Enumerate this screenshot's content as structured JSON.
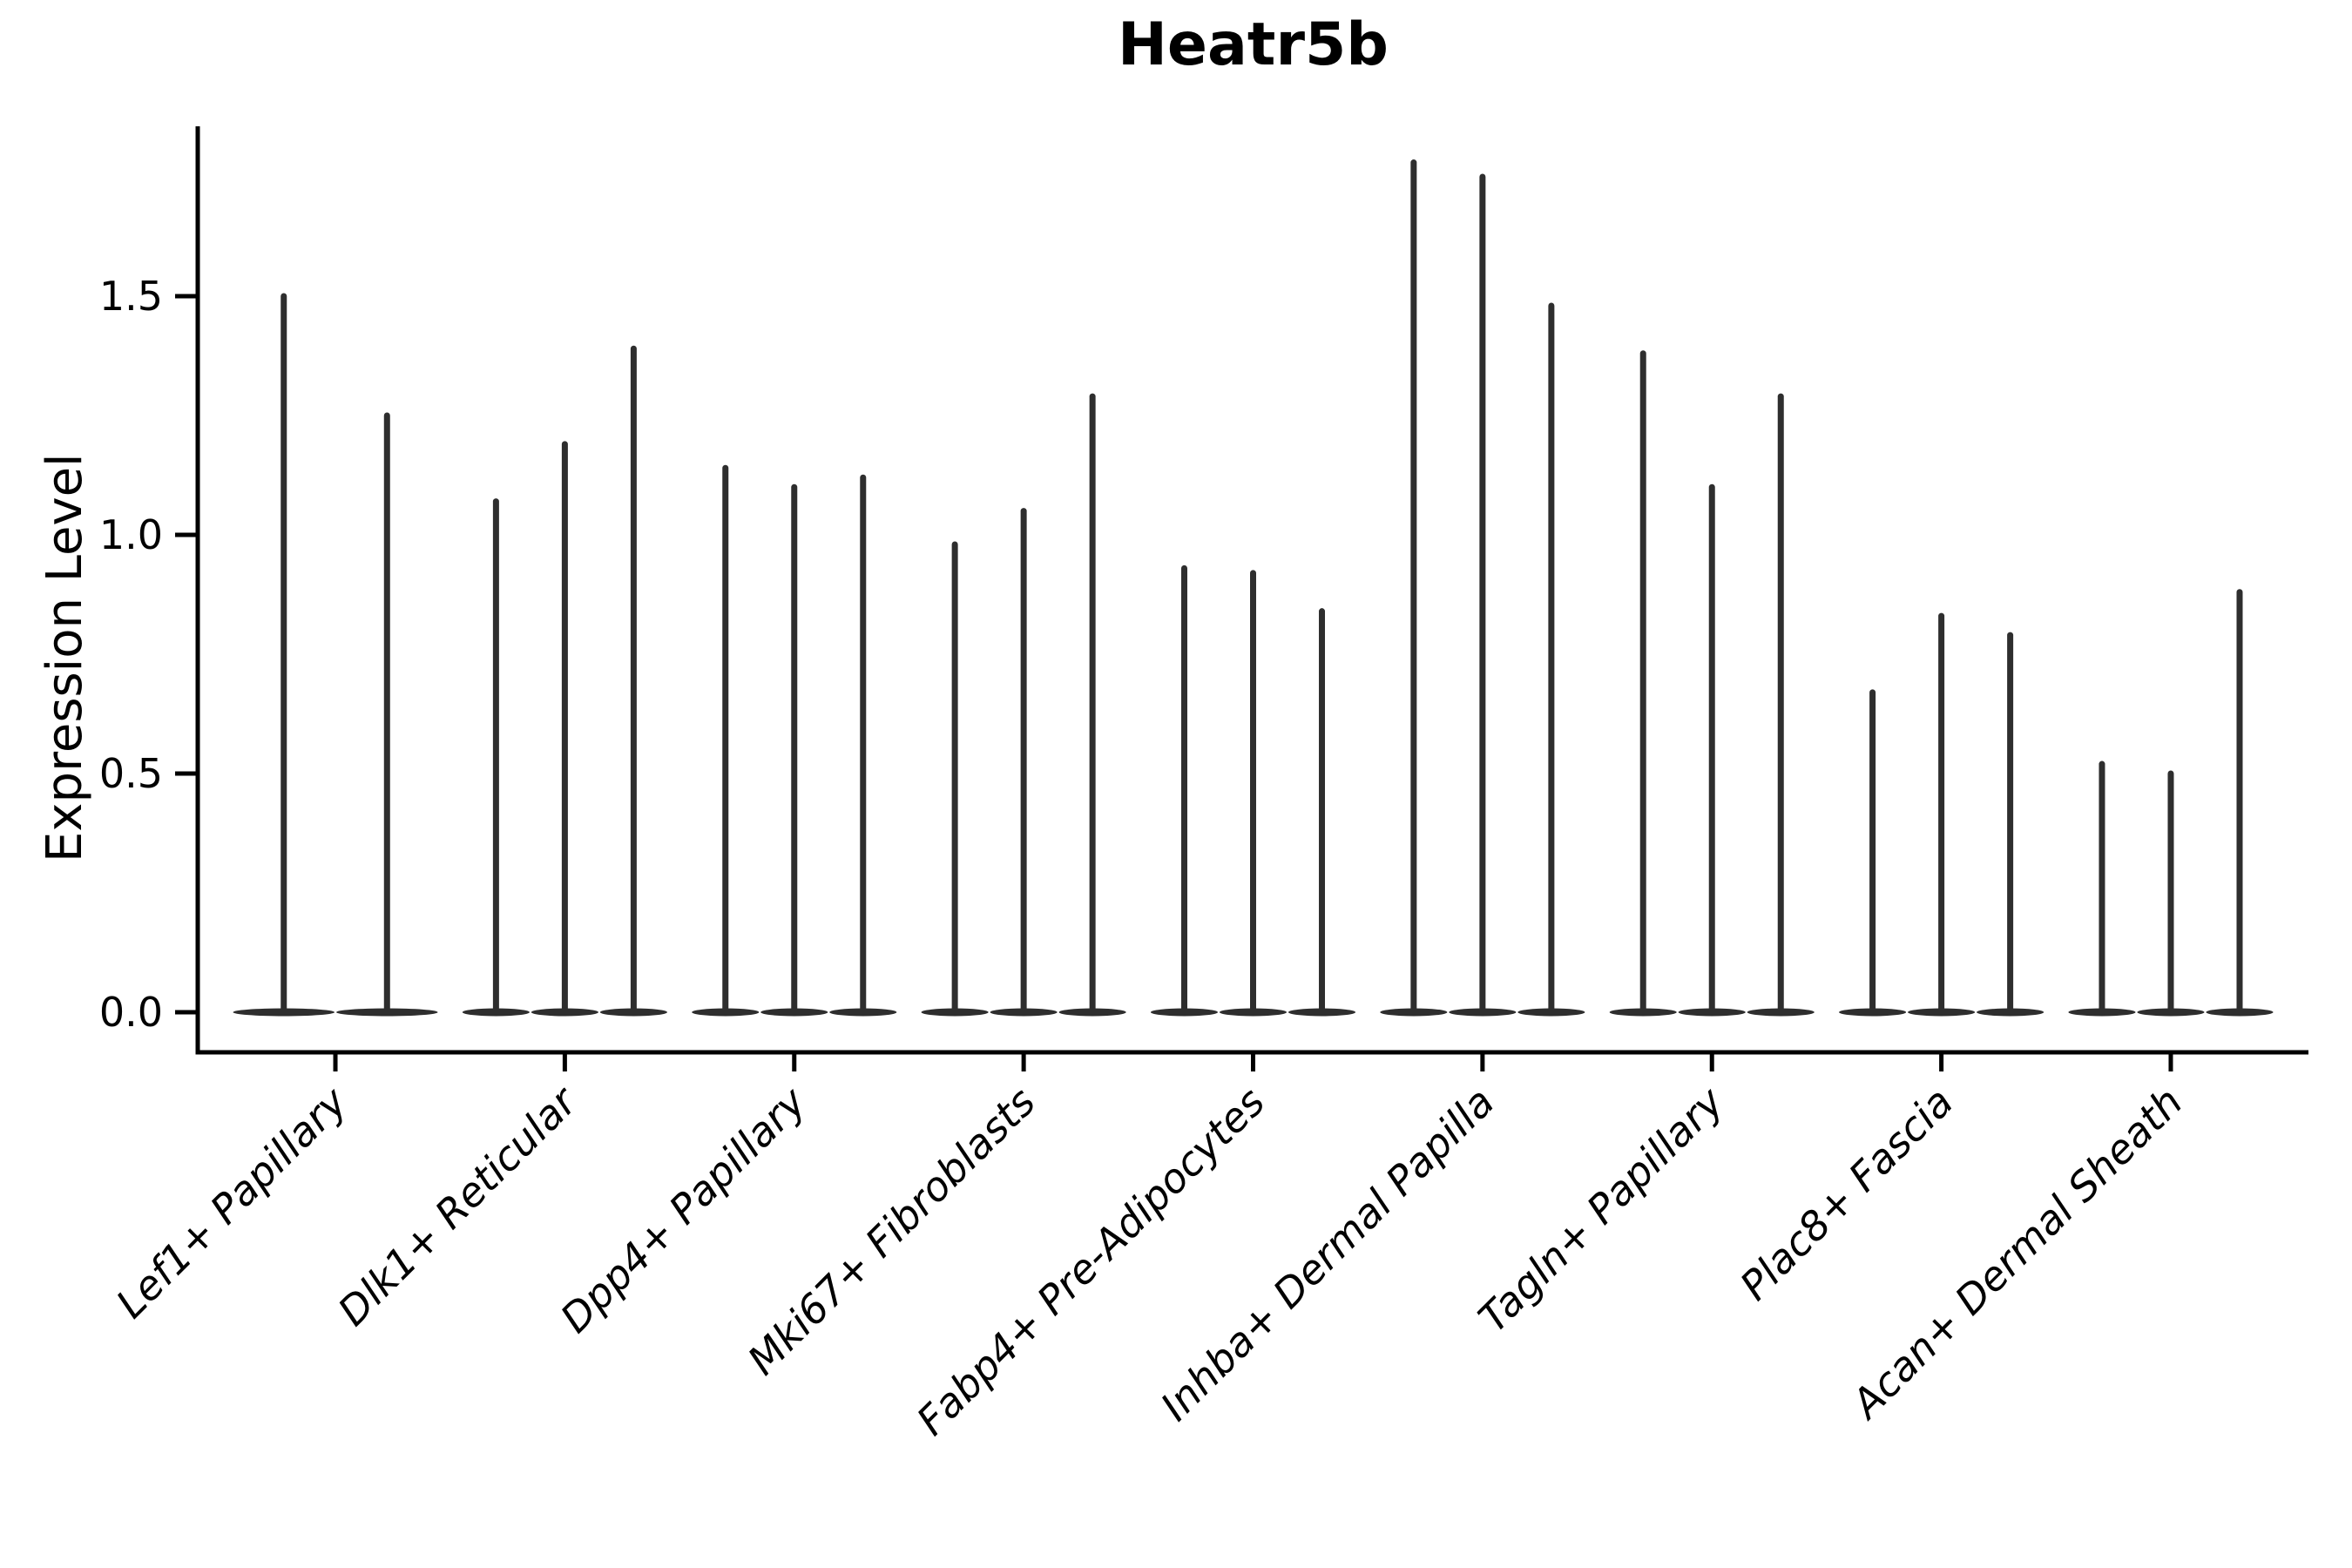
{
  "chart_data": {
    "type": "violin",
    "title": "Heatr5b",
    "xlabel": "",
    "ylabel": "Expression Level",
    "ylim": [
      -0.08,
      1.86
    ],
    "yticks": [
      0.0,
      0.5,
      1.0,
      1.5
    ],
    "ytick_labels": [
      "0.0",
      "0.5",
      "1.0",
      "1.5"
    ],
    "grid": false,
    "legend": null,
    "description": "Spike-like violin plot; each category shows 2-3 thin violins (one per sample) whose density mass sits at 0 with a narrow spike up to the max expression value.",
    "violin_color": "#2e2e2e",
    "axis_color": "#000000",
    "groups": [
      {
        "label": "Lef1+ Papillary",
        "spike_max_values": [
          1.5,
          1.25
        ]
      },
      {
        "label": "Dlk1+ Reticular",
        "spike_max_values": [
          1.07,
          1.19,
          1.39
        ]
      },
      {
        "label": "Dpp4+ Papillary",
        "spike_max_values": [
          1.14,
          1.1,
          1.12
        ]
      },
      {
        "label": "Mki67+ Fibroblasts",
        "spike_max_values": [
          0.98,
          1.05,
          1.29
        ]
      },
      {
        "label": "Fabp4+ Pre-Adipocytes",
        "spike_max_values": [
          0.93,
          0.92,
          0.84
        ]
      },
      {
        "label": "Inhba+ Dermal Papilla",
        "spike_max_values": [
          1.78,
          1.75,
          1.48
        ]
      },
      {
        "label": "Tagln+ Papillary",
        "spike_max_values": [
          1.38,
          1.1,
          1.29
        ]
      },
      {
        "label": "Plac8+ Fascia",
        "spike_max_values": [
          0.67,
          0.83,
          0.79
        ]
      },
      {
        "label": "Acan+ Dermal Sheath",
        "spike_max_values": [
          0.52,
          0.5,
          0.88
        ]
      }
    ]
  }
}
